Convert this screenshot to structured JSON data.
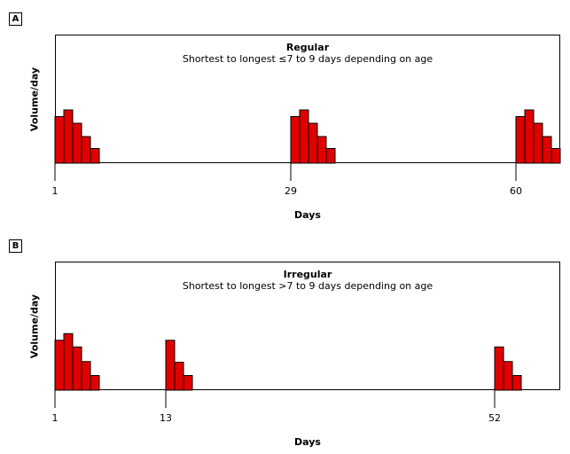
{
  "chart_data": [
    {
      "panel": "A",
      "type": "bar",
      "title": "Regular",
      "subtitle": "Shortest to longest ≤7 to 9 days depending on age",
      "xlabel": "Days",
      "ylabel": "Volume/day",
      "x_ticks": [
        1,
        29,
        60
      ],
      "episodes": [
        {
          "start_day": 1,
          "values": [
            0.7,
            0.8,
            0.6,
            0.4,
            0.22
          ]
        },
        {
          "start_day": 29,
          "values": [
            0.7,
            0.8,
            0.6,
            0.4,
            0.22
          ]
        },
        {
          "start_day": 60,
          "values": [
            0.7,
            0.8,
            0.6,
            0.4,
            0.22
          ]
        }
      ],
      "ylim": [
        0,
        1
      ],
      "bar_color": "#e00000",
      "grid": false
    },
    {
      "panel": "B",
      "type": "bar",
      "title": "Irregular",
      "subtitle": "Shortest to longest >7 to 9 days depending on age",
      "xlabel": "Days",
      "ylabel": "Volume/day",
      "x_ticks": [
        1,
        13,
        52
      ],
      "episodes": [
        {
          "start_day": 1,
          "values": [
            0.75,
            0.85,
            0.65,
            0.43,
            0.22
          ]
        },
        {
          "start_day": 13,
          "values": [
            0.75,
            0.42,
            0.22
          ]
        },
        {
          "start_day": 52,
          "values": [
            0.65,
            0.43,
            0.22
          ]
        }
      ],
      "ylim": [
        0,
        1
      ],
      "bar_color": "#e00000",
      "grid": false
    }
  ]
}
